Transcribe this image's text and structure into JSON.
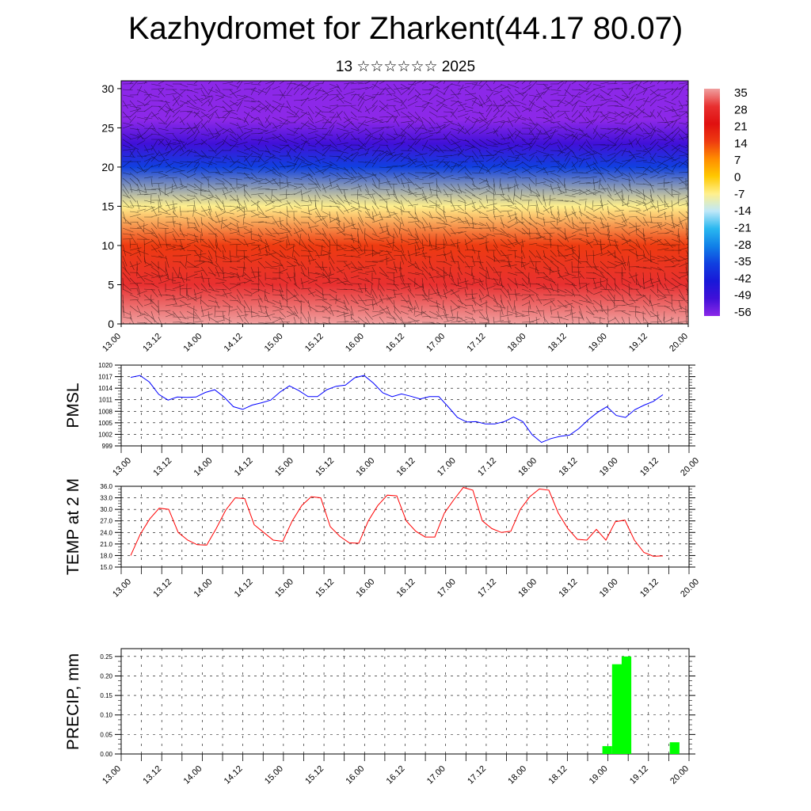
{
  "title": "Kazhydromet for Zharkent(44.17 80.07)",
  "subtitle": "13 ☆☆☆☆☆☆ 2025",
  "time_labels": [
    "13.00",
    "13.12",
    "14.00",
    "14.12",
    "15.00",
    "15.12",
    "16.00",
    "16.12",
    "17.00",
    "17.12",
    "18.00",
    "18.12",
    "19.00",
    "19.12",
    "20.00"
  ],
  "chart_data": [
    {
      "type": "heatmap",
      "yticks": [
        0,
        5,
        10,
        15,
        20,
        25,
        30
      ],
      "ylim": [
        0,
        31
      ],
      "colorbar": {
        "labels": [
          "35",
          "28",
          "21",
          "14",
          "7",
          "0",
          "-7",
          "-14",
          "-21",
          "-28",
          "-35",
          "-42",
          "-49",
          "-56"
        ],
        "colors": [
          "#f0a0a0",
          "#e83030",
          "#e01010",
          "#ee3a10",
          "#ff8c00",
          "#ffc800",
          "#fff08c",
          "#bfe8f8",
          "#2ab8f0",
          "#1080e8",
          "#1040e0",
          "#1818d8",
          "#4010d8",
          "#8c28e8"
        ]
      },
      "profile": [
        {
          "level": 0,
          "value": 33
        },
        {
          "level": 5,
          "value": 28
        },
        {
          "level": 10,
          "value": 14
        },
        {
          "level": 15,
          "value": -7
        },
        {
          "level": 20,
          "value": -35
        },
        {
          "level": 23,
          "value": -49
        },
        {
          "level": 26,
          "value": -56
        },
        {
          "level": 31,
          "value": -56
        }
      ]
    },
    {
      "type": "line",
      "ylabel": "PMSL",
      "yticks": [
        "1020",
        "1017",
        "1014",
        "1011",
        "1008",
        "1005",
        "1002",
        "999"
      ],
      "ylim": [
        999,
        1020
      ],
      "color": "#0000ff",
      "values": [
        1016.8,
        1017.3,
        1015.6,
        1012.4,
        1010.9,
        1011.7,
        1011.6,
        1011.7,
        1012.9,
        1013.6,
        1011.7,
        1009.2,
        1008.5,
        1009.6,
        1010.2,
        1010.9,
        1013.0,
        1014.6,
        1013.4,
        1011.8,
        1011.8,
        1013.6,
        1014.5,
        1014.8,
        1016.7,
        1017.3,
        1015.3,
        1012.8,
        1011.8,
        1012.5,
        1011.9,
        1011.2,
        1011.8,
        1011.8,
        1009.2,
        1006.4,
        1005.2,
        1005.3,
        1004.7,
        1004.7,
        1005.3,
        1006.5,
        1005.3,
        1001.9,
        999.9,
        1000.9,
        1001.5,
        1001.8,
        1003.5,
        1005.8,
        1007.7,
        1009.2,
        1006.9,
        1006.4,
        1008.4,
        1009.6,
        1010.6,
        1012.3
      ]
    },
    {
      "type": "line",
      "ylabel": "TEMP at 2 M",
      "yticks": [
        "36.0",
        "33.0",
        "30.0",
        "27.0",
        "24.0",
        "21.0",
        "18.0",
        "15.0"
      ],
      "ylim": [
        15,
        36
      ],
      "color": "#ff0000",
      "values": [
        18.0,
        23.5,
        27.5,
        30.3,
        30.0,
        24.0,
        22.0,
        20.8,
        20.7,
        25.0,
        29.8,
        33.0,
        32.8,
        26.0,
        24.0,
        22.0,
        21.7,
        27.0,
        31.0,
        33.3,
        33.0,
        25.5,
        23.0,
        21.3,
        21.2,
        27.0,
        31.0,
        33.7,
        33.5,
        27.0,
        24.3,
        22.8,
        22.8,
        29.0,
        32.5,
        35.7,
        35.0,
        27.0,
        25.0,
        24.0,
        24.3,
        30.0,
        33.3,
        35.3,
        35.0,
        29.0,
        25.0,
        22.2,
        22.0,
        24.8,
        22.0,
        26.8,
        27.2,
        22.0,
        18.8,
        17.8,
        17.9
      ]
    },
    {
      "type": "bar",
      "ylabel": "PRECIP, mm",
      "yticks": [
        "0.25",
        "0.20",
        "0.15",
        "0.10",
        "0.05",
        "0.00"
      ],
      "ylim": [
        0,
        0.27
      ],
      "color": "#00ff00",
      "bars": [
        {
          "x": 50.5,
          "value": 0.02
        },
        {
          "x": 51.5,
          "value": 0.23
        },
        {
          "x": 52.5,
          "value": 0.25
        },
        {
          "x": 57.5,
          "value": 0.03
        }
      ]
    }
  ]
}
